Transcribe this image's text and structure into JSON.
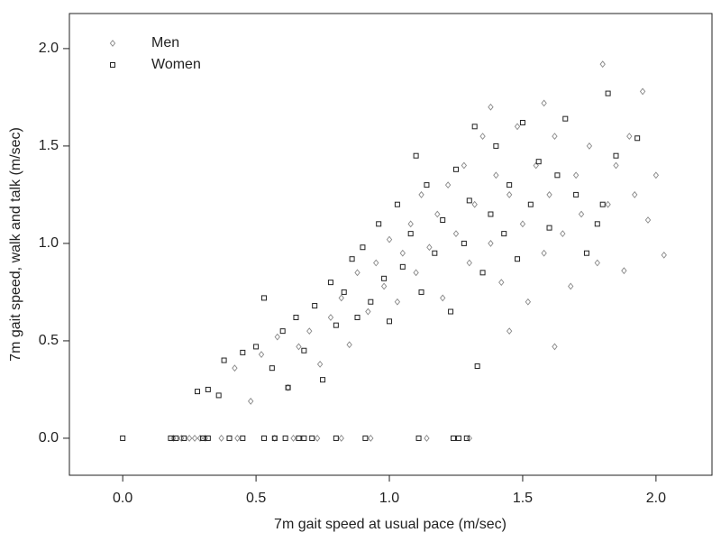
{
  "chart_data": {
    "type": "scatter",
    "xlabel": "7m gait speed at usual pace (m/sec)",
    "ylabel": "7m gait speed, walk and talk (m/sec)",
    "xlim": [
      -0.2,
      2.21
    ],
    "ylim": [
      -0.19,
      2.18
    ],
    "xticks": [
      {
        "value": 0,
        "label": "0.0"
      },
      {
        "value": 0.5,
        "label": "0.5"
      },
      {
        "value": 1,
        "label": "1.0"
      },
      {
        "value": 1.5,
        "label": "1.5"
      },
      {
        "value": 2,
        "label": "2.0"
      }
    ],
    "yticks": [
      {
        "value": 0,
        "label": "0.0"
      },
      {
        "value": 0.5,
        "label": "0.5"
      },
      {
        "value": 1,
        "label": "1.0"
      },
      {
        "value": 1.5,
        "label": "1.5"
      },
      {
        "value": 2,
        "label": "2.0"
      }
    ],
    "legend": "upper left",
    "series": [
      {
        "name": "Men",
        "color": "#888888",
        "marker": "diamond",
        "x": [
          0.19,
          0.22,
          0.25,
          0.27,
          0.29,
          0.31,
          0.37,
          0.43,
          0.57,
          0.64,
          0.73,
          0.82,
          0.93,
          1.14,
          1.3,
          0.42,
          0.48,
          0.52,
          0.58,
          0.62,
          0.66,
          0.7,
          0.74,
          0.78,
          0.82,
          0.85,
          0.88,
          0.92,
          0.95,
          0.98,
          1.0,
          1.03,
          1.05,
          1.08,
          1.1,
          1.12,
          1.15,
          1.18,
          1.2,
          1.22,
          1.25,
          1.28,
          1.3,
          1.32,
          1.35,
          1.38,
          1.4,
          1.42,
          1.45,
          1.48,
          1.5,
          1.52,
          1.55,
          1.58,
          1.6,
          1.62,
          1.65,
          1.68,
          1.7,
          1.72,
          1.75,
          1.78,
          1.8,
          1.82,
          1.85,
          1.88,
          1.9,
          1.92,
          1.95,
          1.97,
          2.0,
          2.03,
          1.58,
          1.45,
          1.62,
          1.38
        ],
        "y": [
          0,
          0,
          0,
          0,
          0,
          0,
          0,
          0,
          0,
          0,
          0,
          0,
          0,
          0,
          0,
          0.36,
          0.19,
          0.43,
          0.52,
          0.26,
          0.47,
          0.55,
          0.38,
          0.62,
          0.72,
          0.48,
          0.85,
          0.65,
          0.9,
          0.78,
          1.02,
          0.7,
          0.95,
          1.1,
          0.85,
          1.25,
          0.98,
          1.15,
          0.72,
          1.3,
          1.05,
          1.4,
          0.9,
          1.2,
          1.55,
          1.0,
          1.35,
          0.8,
          1.25,
          1.6,
          1.1,
          0.7,
          1.4,
          0.95,
          1.25,
          1.55,
          1.05,
          0.78,
          1.35,
          1.15,
          1.5,
          0.9,
          1.92,
          1.2,
          1.4,
          0.86,
          1.55,
          1.25,
          1.78,
          1.12,
          1.35,
          0.94,
          1.72,
          0.55,
          0.47,
          1.7
        ]
      },
      {
        "name": "Women",
        "color": "#222222",
        "marker": "square",
        "x": [
          0.0,
          0.18,
          0.2,
          0.23,
          0.3,
          0.32,
          0.4,
          0.45,
          0.53,
          0.57,
          0.61,
          0.66,
          0.68,
          0.71,
          0.8,
          0.91,
          1.11,
          1.24,
          1.26,
          1.29,
          0.28,
          0.32,
          0.36,
          0.38,
          0.45,
          0.5,
          0.53,
          0.56,
          0.6,
          0.62,
          0.65,
          0.68,
          0.72,
          0.75,
          0.78,
          0.8,
          0.83,
          0.86,
          0.88,
          0.9,
          0.93,
          0.96,
          0.98,
          1.0,
          1.03,
          1.05,
          1.08,
          1.1,
          1.12,
          1.14,
          1.17,
          1.2,
          1.23,
          1.25,
          1.28,
          1.3,
          1.32,
          1.35,
          1.38,
          1.4,
          1.43,
          1.45,
          1.48,
          1.5,
          1.53,
          1.56,
          1.6,
          1.63,
          1.66,
          1.7,
          1.74,
          1.78,
          1.82,
          1.85,
          1.93,
          1.8,
          1.33
        ],
        "y": [
          0,
          0,
          0,
          0,
          0,
          0,
          0,
          0,
          0,
          0,
          0,
          0,
          0,
          0,
          0,
          0,
          0,
          0,
          0,
          0,
          0.24,
          0.25,
          0.22,
          0.4,
          0.44,
          0.47,
          0.72,
          0.36,
          0.55,
          0.26,
          0.62,
          0.45,
          0.68,
          0.3,
          0.8,
          0.58,
          0.75,
          0.92,
          0.62,
          0.98,
          0.7,
          1.1,
          0.82,
          0.6,
          1.2,
          0.88,
          1.05,
          1.45,
          0.75,
          1.3,
          0.95,
          1.12,
          0.65,
          1.38,
          1.0,
          1.22,
          1.6,
          0.85,
          1.15,
          1.5,
          1.05,
          1.3,
          0.92,
          1.62,
          1.2,
          1.42,
          1.08,
          1.35,
          1.64,
          1.25,
          0.95,
          1.1,
          1.77,
          1.45,
          1.54,
          1.2,
          0.37
        ]
      }
    ]
  }
}
